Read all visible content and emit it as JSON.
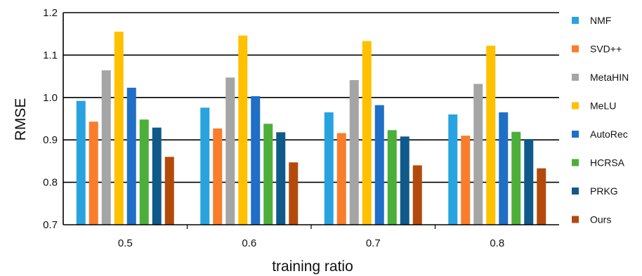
{
  "chart_data": {
    "type": "bar",
    "xlabel": "training ratio",
    "ylabel": "RMSE",
    "ylim": [
      0.7,
      1.2
    ],
    "yticks": [
      "0.7",
      "0.8",
      "0.9",
      "1.0",
      "1.1",
      "1.2"
    ],
    "grid": "horizontal",
    "legend_position": "right",
    "categories": [
      "0.5",
      "0.6",
      "0.7",
      "0.8"
    ],
    "series": [
      {
        "name": "NMF",
        "color": "#29a3e0",
        "values": [
          0.992,
          0.976,
          0.965,
          0.96
        ]
      },
      {
        "name": "SVD++",
        "color": "#fa7d2c",
        "values": [
          0.943,
          0.927,
          0.916,
          0.91
        ]
      },
      {
        "name": "MetaHIN",
        "color": "#a5a5a5",
        "values": [
          1.064,
          1.047,
          1.041,
          1.032
        ]
      },
      {
        "name": "MeLU",
        "color": "#ffc000",
        "values": [
          1.155,
          1.146,
          1.133,
          1.122
        ]
      },
      {
        "name": "AutoRec",
        "color": "#1f6fc6",
        "values": [
          1.023,
          1.003,
          0.982,
          0.965
        ]
      },
      {
        "name": "HCRSA",
        "color": "#4caf3a",
        "values": [
          0.948,
          0.938,
          0.923,
          0.919
        ]
      },
      {
        "name": "PRKG",
        "color": "#0f5a8a",
        "values": [
          0.929,
          0.918,
          0.908,
          0.902
        ]
      },
      {
        "name": "Ours",
        "color": "#b34a0c",
        "values": [
          0.86,
          0.847,
          0.84,
          0.833
        ]
      }
    ]
  }
}
